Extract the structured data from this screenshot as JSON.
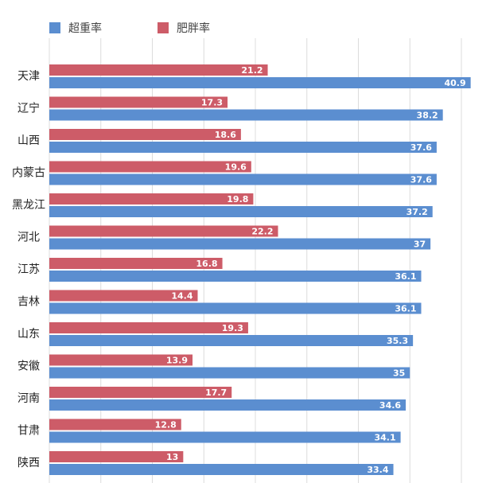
{
  "chart_data": {
    "type": "bar",
    "orientation": "horizontal",
    "categories": [
      "天津",
      "辽宁",
      "山西",
      "内蒙古",
      "黑龙江",
      "河北",
      "江苏",
      "吉林",
      "山东",
      "安徽",
      "河南",
      "甘肃",
      "陕西"
    ],
    "series": [
      {
        "name": "超重率",
        "color": "#5b8ed0",
        "values": [
          40.9,
          38.2,
          37.6,
          37.6,
          37.2,
          37,
          36.1,
          36.1,
          35.3,
          35,
          34.6,
          34.1,
          33.4
        ]
      },
      {
        "name": "肥胖率",
        "color": "#cd5c68",
        "values": [
          21.2,
          17.3,
          18.6,
          19.6,
          19.8,
          22.2,
          16.8,
          14.4,
          19.3,
          13.9,
          17.7,
          12.8,
          13
        ]
      }
    ],
    "title": "",
    "xlabel": "",
    "ylabel": "",
    "xlim": [
      0,
      45
    ],
    "grid": true,
    "legend": "top-left"
  }
}
